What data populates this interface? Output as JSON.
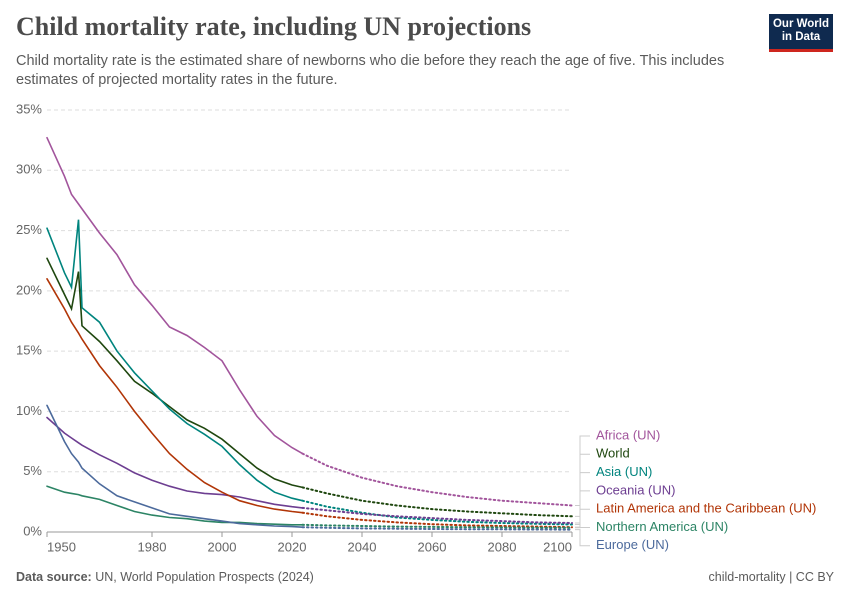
{
  "chart_data": {
    "type": "line",
    "title": "Child mortality rate, including UN projections",
    "subtitle": "Child mortality rate is the estimated share of newborns who die before they reach the age of five. This includes estimates of projected mortality rates in the future.",
    "logo": [
      "Our World",
      "in Data"
    ],
    "source_label": "Data source:",
    "source": "UN, World Population Prospects (2024)",
    "credit": "child-mortality | CC BY",
    "projection_start": 2023,
    "grid": true,
    "x": [
      1950,
      1955,
      1957,
      1959,
      1960,
      1965,
      1970,
      1975,
      1980,
      1985,
      1990,
      1995,
      2000,
      2005,
      2010,
      2015,
      2020,
      2023,
      2030,
      2040,
      2050,
      2060,
      2070,
      2080,
      2090,
      2100
    ],
    "xlim": [
      1950,
      2100
    ],
    "xticks": [
      1950,
      1980,
      2000,
      2020,
      2040,
      2060,
      2080,
      2100
    ],
    "ylim": [
      0,
      35
    ],
    "yticks": [
      {
        "value": 0,
        "label": "0%"
      },
      {
        "value": 5,
        "label": "5%"
      },
      {
        "value": 10,
        "label": "10%"
      },
      {
        "value": 15,
        "label": "15%"
      },
      {
        "value": 20,
        "label": "20%"
      },
      {
        "value": 25,
        "label": "25%"
      },
      {
        "value": 30,
        "label": "30%"
      },
      {
        "value": 35,
        "label": "35%"
      }
    ],
    "series": [
      {
        "name": "Africa (UN)",
        "color": "#a2559c",
        "values": [
          32.7,
          29.5,
          28.0,
          27.2,
          26.8,
          24.8,
          23.0,
          20.5,
          18.8,
          17.0,
          16.3,
          15.3,
          14.2,
          11.8,
          9.6,
          8.0,
          7.0,
          6.5,
          5.5,
          4.5,
          3.8,
          3.3,
          2.9,
          2.6,
          2.4,
          2.2
        ]
      },
      {
        "name": "World",
        "color": "#1f470f",
        "values": [
          22.7,
          19.7,
          18.5,
          21.6,
          17.1,
          15.8,
          14.2,
          12.5,
          11.5,
          10.4,
          9.3,
          8.6,
          7.7,
          6.5,
          5.3,
          4.4,
          3.9,
          3.7,
          3.2,
          2.6,
          2.2,
          1.9,
          1.7,
          1.55,
          1.4,
          1.3
        ]
      },
      {
        "name": "Asia (UN)",
        "color": "#00847e",
        "values": [
          25.2,
          21.5,
          20.3,
          25.9,
          18.6,
          17.4,
          15.0,
          13.2,
          11.7,
          10.2,
          9.0,
          8.1,
          7.1,
          5.6,
          4.3,
          3.3,
          2.8,
          2.6,
          2.1,
          1.6,
          1.2,
          1.0,
          0.85,
          0.75,
          0.68,
          0.62
        ]
      },
      {
        "name": "Oceania (UN)",
        "color": "#6d3e91",
        "values": [
          9.5,
          8.2,
          7.8,
          7.4,
          7.2,
          6.4,
          5.7,
          4.9,
          4.3,
          3.8,
          3.4,
          3.2,
          3.1,
          2.9,
          2.6,
          2.3,
          2.1,
          2.0,
          1.8,
          1.5,
          1.3,
          1.15,
          1.0,
          0.9,
          0.8,
          0.75
        ]
      },
      {
        "name": "Latin America and the Caribbean (UN)",
        "color": "#b13507",
        "values": [
          21.0,
          18.5,
          17.4,
          16.5,
          16.0,
          13.8,
          12.0,
          10.0,
          8.2,
          6.5,
          5.2,
          4.1,
          3.3,
          2.6,
          2.2,
          1.9,
          1.7,
          1.6,
          1.3,
          1.0,
          0.8,
          0.65,
          0.55,
          0.5,
          0.45,
          0.4
        ]
      },
      {
        "name": "Northern America (UN)",
        "color": "#2c8465",
        "values": [
          3.8,
          3.3,
          3.2,
          3.1,
          3.0,
          2.7,
          2.2,
          1.7,
          1.4,
          1.2,
          1.1,
          0.9,
          0.8,
          0.8,
          0.7,
          0.65,
          0.6,
          0.6,
          0.55,
          0.5,
          0.45,
          0.42,
          0.4,
          0.38,
          0.36,
          0.35
        ]
      },
      {
        "name": "Europe (UN)",
        "color": "#4c6a9c",
        "values": [
          10.5,
          7.5,
          6.5,
          5.8,
          5.3,
          4.0,
          3.0,
          2.5,
          2.0,
          1.5,
          1.3,
          1.1,
          0.9,
          0.7,
          0.6,
          0.5,
          0.45,
          0.4,
          0.35,
          0.3,
          0.27,
          0.25,
          0.23,
          0.22,
          0.21,
          0.2
        ]
      }
    ]
  }
}
